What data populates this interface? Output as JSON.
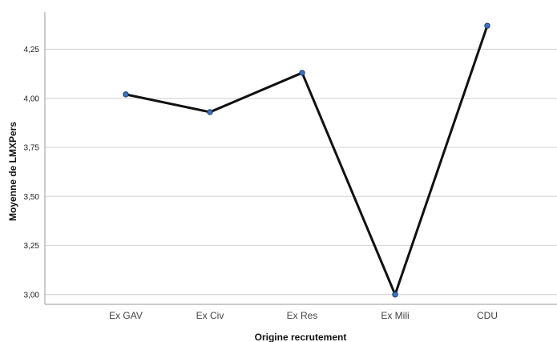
{
  "chart_data": {
    "type": "line",
    "xlabel": "Origine recrutement",
    "ylabel": "Moyenne de LMXPers",
    "categories": [
      "Ex GAV",
      "Ex Civ",
      "Ex Res",
      "Ex Mili",
      "CDU"
    ],
    "values": [
      4.02,
      3.93,
      4.13,
      3.0,
      4.37
    ],
    "ylim": [
      2.95,
      4.44
    ],
    "yticks": [
      3.0,
      3.25,
      3.5,
      3.75,
      4.0,
      4.25
    ],
    "ytick_labels": [
      "3,00",
      "3,25",
      "3,50",
      "3,75",
      "4,00",
      "4,25"
    ],
    "grid": true,
    "line_color": "#111111",
    "marker_color": "#3a73c4"
  }
}
